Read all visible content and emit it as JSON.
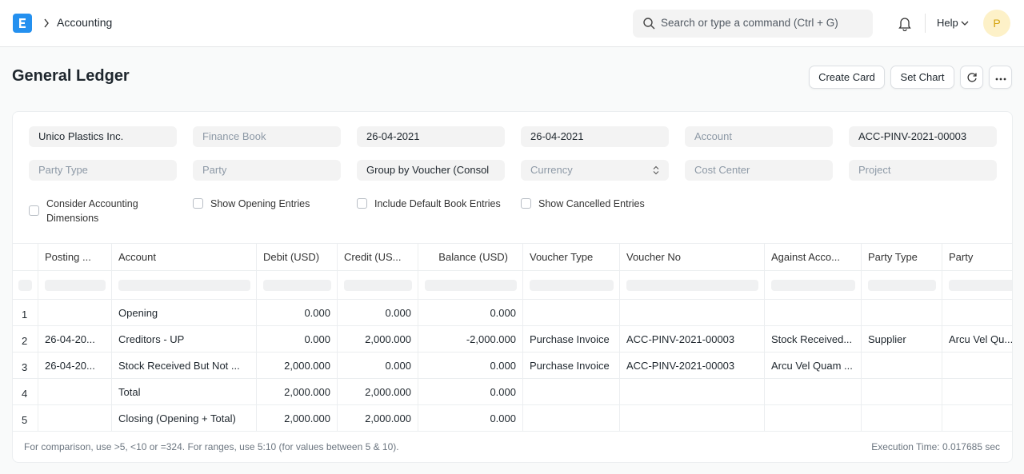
{
  "navbar": {
    "breadcrumb": "Accounting",
    "search_placeholder": "Search or type a command (Ctrl + G)",
    "help": "Help",
    "avatar": "P"
  },
  "page": {
    "title": "General Ledger",
    "actions": [
      "Create Card",
      "Set Chart"
    ]
  },
  "filters": {
    "fields": [
      [
        {
          "value": "Unico Plastics Inc."
        },
        {
          "placeholder": "Finance Book"
        },
        {
          "value": "26-04-2021"
        },
        {
          "value": "26-04-2021"
        },
        {
          "placeholder": "Account"
        },
        {
          "value": "ACC-PINV-2021-00003"
        }
      ],
      [
        {
          "placeholder": "Party Type"
        },
        {
          "placeholder": "Party"
        },
        {
          "value": "Group by Voucher (Consol"
        },
        {
          "placeholder": "Currency",
          "select": true
        },
        {
          "placeholder": "Cost Center"
        },
        {
          "placeholder": "Project"
        }
      ]
    ],
    "checkboxes": [
      "Consider Accounting Dimensions",
      "Show Opening Entries",
      "Include Default Book Entries",
      "Show Cancelled Entries"
    ]
  },
  "table": {
    "columns": [
      "Posting ...",
      "Account",
      "Debit (USD)",
      "Credit (US...",
      "Balance (USD)",
      "Voucher Type",
      "Voucher No",
      "Against Acco...",
      "Party Type",
      "Party"
    ],
    "rows": [
      [
        "1",
        null,
        "Opening",
        "0.000",
        "0.000",
        "0.000",
        null,
        null,
        null,
        null,
        null
      ],
      [
        "2",
        "26-04-20...",
        "Creditors - UP",
        "0.000",
        "2,000.000",
        "-2,000.000",
        "Purchase Invoice",
        "ACC-PINV-2021-00003",
        "Stock Received...",
        "Supplier",
        "Arcu Vel Qu..."
      ],
      [
        "3",
        "26-04-20...",
        "Stock Received But Not ...",
        "2,000.000",
        "0.000",
        "0.000",
        "Purchase Invoice",
        "ACC-PINV-2021-00003",
        "Arcu Vel Quam ...",
        null,
        null
      ],
      [
        "4",
        null,
        "Total",
        "2,000.000",
        "2,000.000",
        "0.000",
        null,
        null,
        null,
        null,
        null
      ],
      [
        "5",
        null,
        "Closing (Opening + Total)",
        "2,000.000",
        "2,000.000",
        "0.000",
        null,
        null,
        null,
        null,
        null
      ]
    ]
  },
  "footer": {
    "hint": "For comparison, use >5, <10 or =324. For ranges, use 5:10 (for values between 5 & 10).",
    "execution_time": "Execution Time: 0.017685 sec"
  }
}
